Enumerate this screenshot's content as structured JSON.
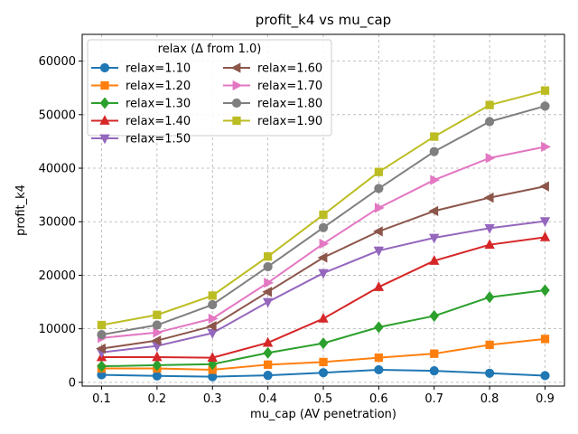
{
  "chart_data": {
    "type": "line",
    "title": "profit_k4 vs mu_cap",
    "xlabel": "mu_cap (AV penetration)",
    "ylabel": "profit_k4",
    "x": [
      0.1,
      0.2,
      0.3,
      0.4,
      0.5,
      0.6,
      0.7,
      0.8,
      0.9
    ],
    "xticks": [
      "0.1",
      "0.2",
      "0.3",
      "0.4",
      "0.5",
      "0.6",
      "0.7",
      "0.8",
      "0.9"
    ],
    "yticks": [
      "0",
      "10000",
      "20000",
      "30000",
      "40000",
      "50000",
      "60000"
    ],
    "xlim": [
      0.065,
      0.935
    ],
    "ylim": [
      -700,
      65000
    ],
    "grid": true,
    "legend": {
      "title": "relax (Δ from 1.0)",
      "location": "top-left",
      "columns": 2
    },
    "series": [
      {
        "name": "relax=1.10",
        "color": "#1f77b4",
        "marker": "circle",
        "values": [
          1400,
          1200,
          1050,
          1300,
          1800,
          2350,
          2150,
          1700,
          1250
        ]
      },
      {
        "name": "relax=1.20",
        "color": "#ff7f0e",
        "marker": "square",
        "values": [
          2600,
          2600,
          2350,
          3300,
          3800,
          4600,
          5350,
          7000,
          8100
        ]
      },
      {
        "name": "relax=1.30",
        "color": "#2ca02c",
        "marker": "diamond",
        "values": [
          3000,
          3200,
          3400,
          5500,
          7300,
          10300,
          12400,
          15900,
          17200
        ]
      },
      {
        "name": "relax=1.40",
        "color": "#d62728",
        "marker": "triangle-up",
        "values": [
          4700,
          4700,
          4600,
          7400,
          11900,
          17800,
          22700,
          25700,
          27100
        ]
      },
      {
        "name": "relax=1.50",
        "color": "#9467bd",
        "marker": "triangle-down",
        "values": [
          5600,
          6800,
          9200,
          15000,
          20400,
          24600,
          27000,
          28800,
          30100
        ]
      },
      {
        "name": "relax=1.60",
        "color": "#8c564b",
        "marker": "triangle-left",
        "values": [
          6300,
          7800,
          10500,
          16900,
          23300,
          28200,
          32000,
          34500,
          36600
        ]
      },
      {
        "name": "relax=1.70",
        "color": "#e377c2",
        "marker": "triangle-right",
        "values": [
          8300,
          9300,
          11900,
          18600,
          25900,
          32600,
          37800,
          41900,
          44000
        ]
      },
      {
        "name": "relax=1.80",
        "color": "#7f7f7f",
        "marker": "circle",
        "values": [
          8900,
          10700,
          14500,
          21600,
          28900,
          36200,
          43100,
          48700,
          51600
        ]
      },
      {
        "name": "relax=1.90",
        "color": "#bcbd22",
        "marker": "square",
        "values": [
          10700,
          12600,
          16200,
          23500,
          31300,
          39300,
          45900,
          51800,
          54500
        ]
      }
    ]
  }
}
